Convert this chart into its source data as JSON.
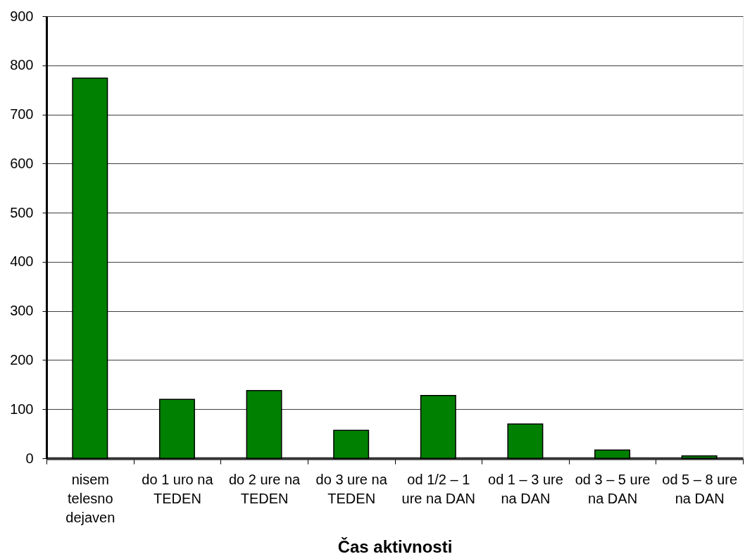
{
  "chart_data": {
    "type": "bar",
    "xlabel": "Čas aktivnosti",
    "categories": [
      "nisem telesno dejaven",
      "do 1 uro na TEDEN",
      "do 2 ure na TEDEN",
      "do 3 ure na TEDEN",
      "od 1/2 – 1 ure na DAN",
      "od 1 – 3 ure na DAN",
      "od 3 – 5 ure na DAN",
      "od 5 – 8 ure na DAN"
    ],
    "values": [
      774,
      120,
      138,
      57,
      128,
      70,
      17,
      5
    ],
    "color": "#008000",
    "ylim": [
      0,
      900
    ],
    "yticks": [
      0,
      100,
      200,
      300,
      400,
      500,
      600,
      700,
      800,
      900
    ],
    "grid": "y"
  }
}
